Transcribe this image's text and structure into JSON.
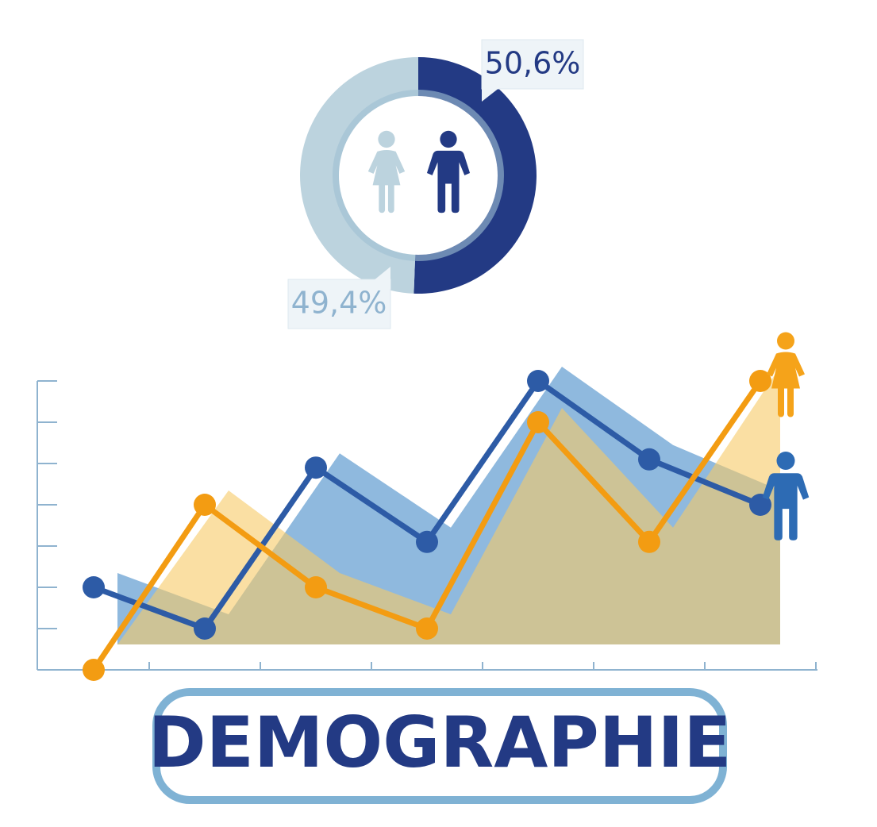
{
  "title": "DEMOGRAPHIE",
  "chart_data": [
    {
      "type": "donut",
      "values": [
        50.6,
        49.4
      ],
      "value_labels": [
        "50,6%",
        "49,4%"
      ],
      "colors": [
        "#233a84",
        "#bcd3de"
      ]
    },
    {
      "type": "line",
      "categories": [
        null,
        null,
        null,
        null,
        null,
        null,
        null
      ],
      "series": [
        {
          "color": "#2d5ba6",
          "area_color": "#8fb9de",
          "values": [
            2,
            1,
            4.9,
            3.1,
            7,
            5.1,
            4
          ]
        },
        {
          "color": "#f39c12",
          "area_color": "#f7c965",
          "values": [
            0,
            4,
            2,
            1,
            6,
            3.1,
            7
          ]
        }
      ],
      "ylim": [
        0,
        7
      ],
      "yticks": [
        0,
        1,
        2,
        3,
        4,
        5,
        6,
        7
      ]
    }
  ]
}
